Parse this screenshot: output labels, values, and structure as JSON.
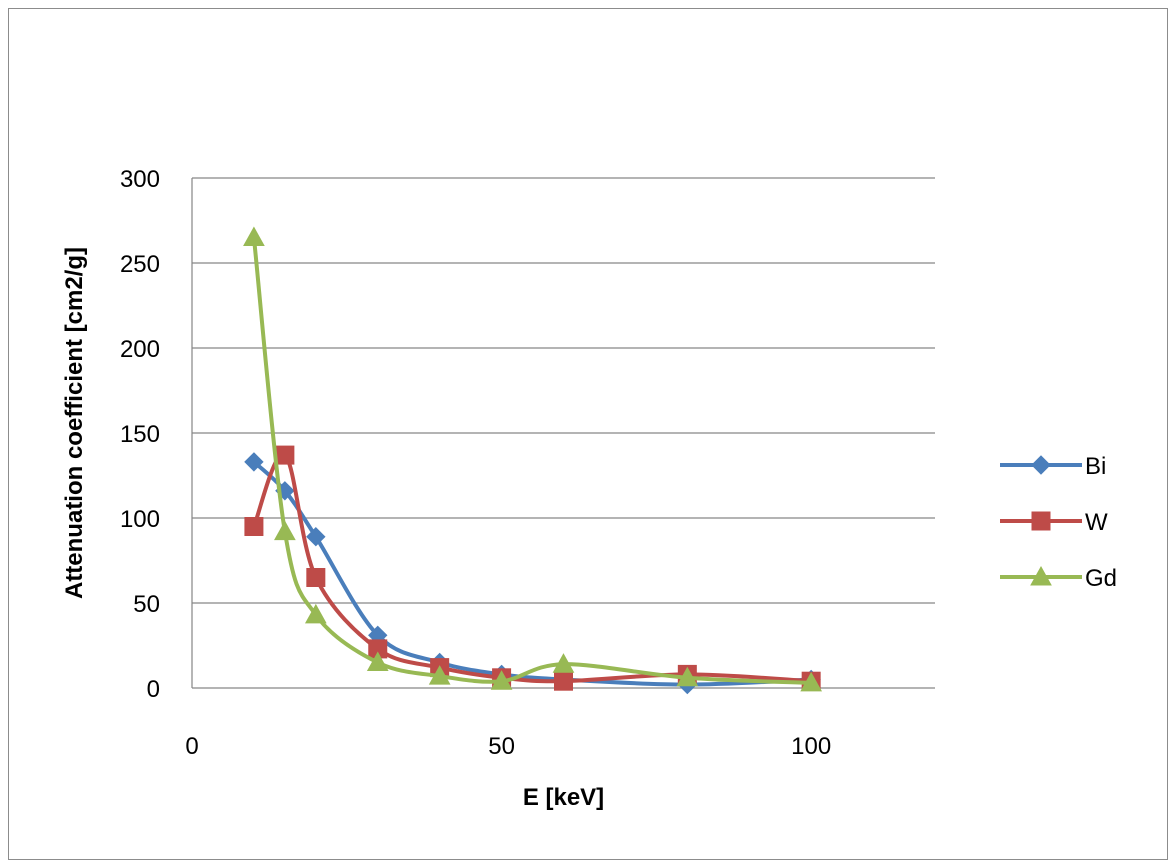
{
  "chart_data": {
    "type": "scatter",
    "smooth": true,
    "title": "",
    "xlabel": "E [keV]",
    "ylabel": "Attenuation coefficient [cm2/g]",
    "xlim": [
      0,
      120
    ],
    "ylim": [
      0,
      300
    ],
    "xticks": [
      0,
      50,
      100
    ],
    "yticks": [
      0,
      50,
      100,
      150,
      200,
      250,
      300
    ],
    "grid": {
      "horizontal": true,
      "vertical": false
    },
    "legend_position": "right",
    "series": [
      {
        "name": "Bi",
        "color": "#4a7ebb",
        "marker": "diamond",
        "x": [
          10,
          15,
          20,
          30,
          40,
          50,
          60,
          80,
          100
        ],
        "y": [
          133,
          116,
          89,
          31,
          15,
          8,
          5,
          2,
          5
        ]
      },
      {
        "name": "W",
        "color": "#be4b48",
        "marker": "square",
        "x": [
          10,
          15,
          20,
          30,
          40,
          50,
          60,
          80,
          100
        ],
        "y": [
          95,
          137,
          65,
          23,
          12,
          6,
          4,
          8,
          4
        ]
      },
      {
        "name": "Gd",
        "color": "#98b954",
        "marker": "triangle",
        "x": [
          10,
          15,
          20,
          30,
          40,
          50,
          60,
          80,
          100
        ],
        "y": [
          265,
          92,
          43,
          15,
          7,
          4,
          14,
          6,
          3
        ]
      }
    ]
  }
}
